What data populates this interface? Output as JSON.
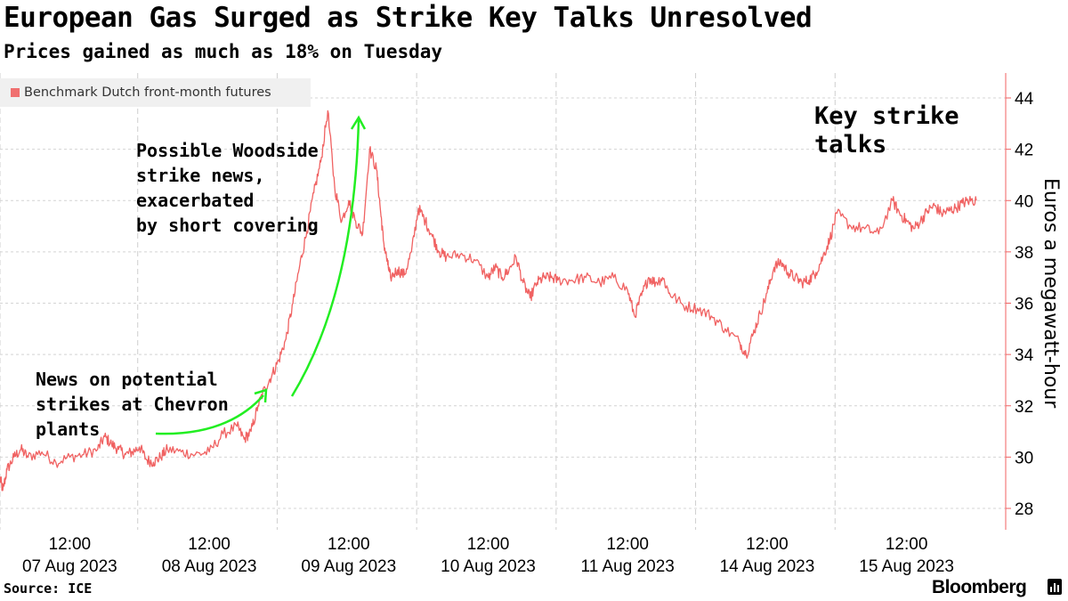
{
  "title": "European Gas Surged as Strike Key Talks Unresolved",
  "subtitle": "Prices gained as much as 18% on Tuesday",
  "source": "Source: ICE",
  "brand": "Bloomberg",
  "annotations": {
    "chevron": "News on potential\nstrikes at Chevron\nplants",
    "woodside": "Possible Woodside\nstrike news,\nexacerbated\nby short covering",
    "key_talks": "Key strike\ntalks"
  },
  "colors": {
    "series": "#f06262",
    "arrow": "#22ee22",
    "grid": "#d4d4d4"
  },
  "chart_data": {
    "type": "line",
    "title": "European Gas Surged as Strike Key Talks Unresolved",
    "subtitle": "Prices gained as much as 18% on Tuesday",
    "ylabel": "Euros a megawatt-hour",
    "xlabel": "",
    "ylim": [
      27,
      45
    ],
    "yticks": [
      28,
      30,
      32,
      34,
      36,
      38,
      40,
      42,
      44
    ],
    "grid": true,
    "legend_position": "top-left",
    "x_tick_labels": [
      {
        "time": "12:00",
        "date": "07 Aug 2023"
      },
      {
        "time": "12:00",
        "date": "08 Aug 2023"
      },
      {
        "time": "12:00",
        "date": "09 Aug 2023"
      },
      {
        "time": "12:00",
        "date": "10 Aug 2023"
      },
      {
        "time": "12:00",
        "date": "11 Aug 2023"
      },
      {
        "time": "12:00",
        "date": "14 Aug 2023"
      },
      {
        "time": "12:00",
        "date": "15 Aug 2023"
      }
    ],
    "x_unit": "trading session",
    "session_starts": [
      0,
      1,
      2,
      3,
      4,
      5,
      6
    ],
    "series": [
      {
        "name": "Benchmark Dutch front-month futures",
        "x": [
          0.0,
          0.02,
          0.05,
          0.1,
          0.15,
          0.2,
          0.3,
          0.4,
          0.5,
          0.6,
          0.7,
          0.75,
          0.8,
          0.85,
          0.9,
          0.95,
          1.0,
          1.05,
          1.1,
          1.15,
          1.2,
          1.3,
          1.4,
          1.5,
          1.6,
          1.7,
          1.75,
          1.8,
          1.85,
          1.9,
          1.95,
          2.0,
          2.05,
          2.1,
          2.15,
          2.2,
          2.25,
          2.3,
          2.35,
          2.4,
          2.45,
          2.5,
          2.55,
          2.6,
          2.65,
          2.7,
          2.73,
          2.75,
          2.78,
          2.8,
          2.85,
          2.9,
          2.95,
          3.0,
          3.05,
          3.1,
          3.15,
          3.2,
          3.3,
          3.4,
          3.5,
          3.55,
          3.6,
          3.65,
          3.7,
          3.75,
          3.8,
          3.85,
          3.9,
          3.95,
          4.0,
          4.1,
          4.2,
          4.3,
          4.4,
          4.5,
          4.55,
          4.6,
          4.65,
          4.7,
          4.75,
          4.8,
          4.9,
          5.0,
          5.1,
          5.2,
          5.3,
          5.35,
          5.4,
          5.45,
          5.5,
          5.55,
          5.6,
          5.65,
          5.7,
          5.75,
          5.8,
          5.85,
          5.9,
          5.95,
          6.0,
          6.1,
          6.2,
          6.3,
          6.4,
          6.45,
          6.5,
          6.55,
          6.6,
          6.65,
          6.7,
          6.75,
          6.8,
          6.85,
          6.9,
          6.95,
          7.0
        ],
        "values": [
          29.2,
          28.7,
          29.5,
          30.0,
          30.3,
          30.0,
          30.2,
          29.8,
          30.0,
          30.1,
          30.3,
          30.8,
          30.5,
          30.3,
          30.1,
          30.2,
          30.4,
          29.9,
          29.8,
          30.0,
          30.3,
          30.2,
          30.1,
          30.2,
          30.9,
          31.2,
          30.7,
          31.0,
          32.0,
          32.7,
          33.2,
          33.8,
          34.6,
          36.0,
          37.5,
          38.8,
          40.3,
          41.5,
          43.5,
          40.5,
          39.2,
          40.0,
          39.2,
          38.7,
          42.0,
          41.2,
          39.5,
          38.4,
          37.5,
          37.0,
          37.3,
          37.1,
          38.0,
          39.7,
          39.2,
          38.6,
          38.0,
          37.8,
          37.9,
          37.7,
          37.0,
          37.4,
          37.0,
          37.3,
          37.8,
          36.8,
          36.2,
          36.8,
          37.0,
          37.0,
          36.9,
          36.9,
          37.0,
          36.8,
          37.0,
          36.5,
          35.5,
          36.3,
          37.0,
          36.8,
          37.0,
          36.4,
          35.9,
          35.8,
          35.5,
          35.0,
          34.5,
          34.0,
          34.8,
          35.6,
          36.4,
          37.4,
          37.6,
          37.2,
          37.0,
          36.8,
          36.9,
          37.2,
          37.8,
          38.5,
          39.5,
          39.0,
          38.9,
          38.7,
          40.0,
          39.5,
          39.2,
          38.9,
          39.2,
          39.6,
          39.8,
          39.5,
          39.6,
          39.7,
          39.9,
          40.0,
          40.0
        ]
      }
    ]
  }
}
